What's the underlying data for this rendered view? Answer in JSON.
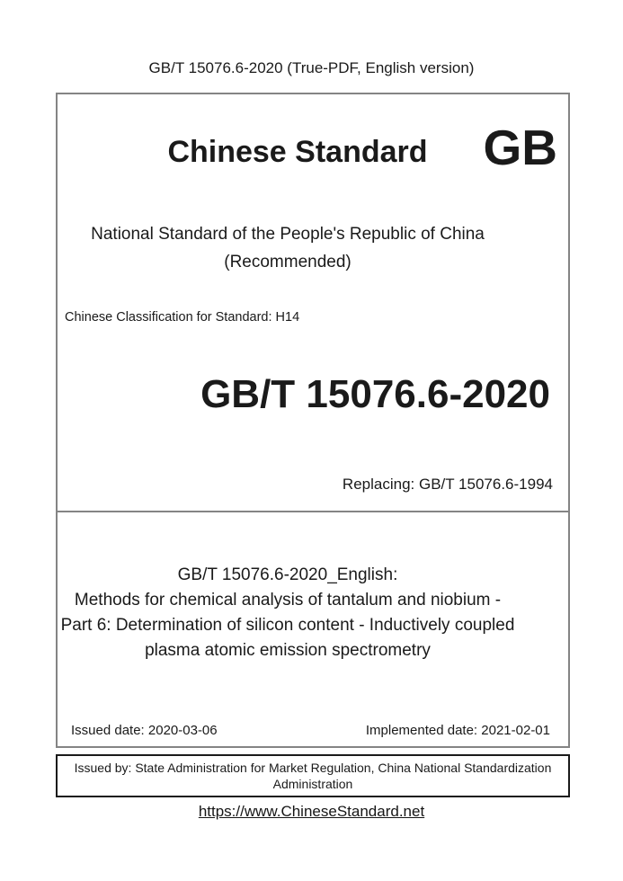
{
  "page": {
    "header": "GB/T 15076.6-2020 (True-PDF, English version)",
    "footer_link": "https://www.ChineseStandard.net"
  },
  "cover": {
    "brand_title": "Chinese Standard",
    "gb_logo": "GB",
    "national_line1": "National Standard of the People's Republic of China",
    "national_line2": "(Recommended)",
    "classification": "Chinese Classification for Standard: H14",
    "standard_code": "GB/T 15076.6-2020",
    "replacing": "Replacing: GB/T 15076.6-1994"
  },
  "title_block": {
    "line1": "GB/T 15076.6-2020_English:",
    "line2": "Methods for chemical analysis of tantalum and niobium -",
    "line3": "Part 6: Determination of silicon content - Inductively coupled",
    "line4": "plasma atomic emission spectrometry"
  },
  "dates": {
    "issued": "Issued date: 2020-03-06",
    "implemented": "Implemented date: 2021-02-01"
  },
  "issuer": {
    "line1": "Issued by: State Administration for Market Regulation, China National Standardization",
    "line2": "Administration"
  },
  "colors": {
    "text": "#1a1a1a",
    "box_border_gray": "#848484",
    "issuer_border_black": "#1a1a1a",
    "background": "#ffffff"
  }
}
